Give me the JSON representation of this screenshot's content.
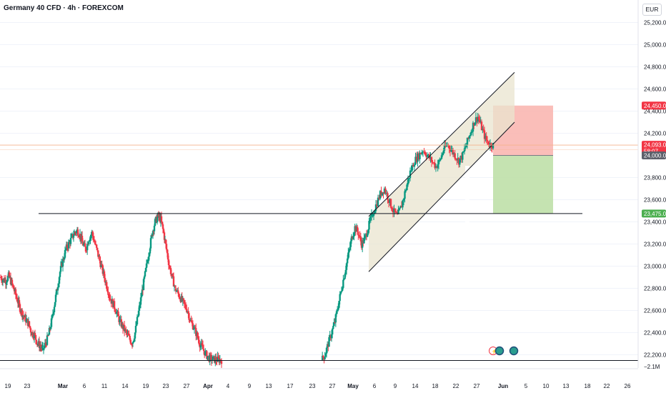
{
  "header": {
    "title": "Germany 40 CFD · 4h · FOREXCOM",
    "currency": "EUR"
  },
  "colors": {
    "up": "#089981",
    "down": "#f23645",
    "grid": "#f0f3fa",
    "channel_fill": "#e9e4cf",
    "stop_zone": "#f9b3ad",
    "target_zone": "#bfe0a8",
    "price_tag_red": "#f23645",
    "price_tag_gray": "#5d606b",
    "price_tag_green": "#4caf50"
  },
  "chart_data": {
    "type": "candlestick",
    "yaxis": {
      "ticks": [
        "25,200.0",
        "25,000.0",
        "24,800.0",
        "24,600.0",
        "24,400.0",
        "24,200.0",
        "23,800.0",
        "23,600.0",
        "23,400.0",
        "23,200.0",
        "23,000.0",
        "22,800.0",
        "22,600.0",
        "22,400.0",
        "22,200.0"
      ],
      "ylim": [
        22150,
        25250
      ]
    },
    "xaxis": {
      "ticks": [
        {
          "label": "19",
          "bold": false
        },
        {
          "label": "23",
          "bold": false
        },
        {
          "label": "Mar",
          "bold": true
        },
        {
          "label": "6",
          "bold": false
        },
        {
          "label": "11",
          "bold": false
        },
        {
          "label": "14",
          "bold": false
        },
        {
          "label": "19",
          "bold": false
        },
        {
          "label": "23",
          "bold": false
        },
        {
          "label": "27",
          "bold": false
        },
        {
          "label": "Apr",
          "bold": true
        },
        {
          "label": "4",
          "bold": false
        },
        {
          "label": "9",
          "bold": false
        },
        {
          "label": "13",
          "bold": false
        },
        {
          "label": "17",
          "bold": false
        },
        {
          "label": "23",
          "bold": false
        },
        {
          "label": "27",
          "bold": false
        },
        {
          "label": "May",
          "bold": true
        },
        {
          "label": "6",
          "bold": false
        },
        {
          "label": "9",
          "bold": false
        },
        {
          "label": "14",
          "bold": false
        },
        {
          "label": "18",
          "bold": false
        },
        {
          "label": "22",
          "bold": false
        },
        {
          "label": "27",
          "bold": false
        },
        {
          "label": "Jun",
          "bold": true
        },
        {
          "label": "5",
          "bold": false
        },
        {
          "label": "10",
          "bold": false
        },
        {
          "label": "13",
          "bold": false
        },
        {
          "label": "18",
          "bold": false
        },
        {
          "label": "22",
          "bold": false
        },
        {
          "label": "26",
          "bold": false
        }
      ]
    },
    "price_labels": [
      {
        "label": "24,450.0",
        "value": 24450,
        "color": "red"
      },
      {
        "label": "24,093.0",
        "value": 24093,
        "color": "red",
        "sublabel": "58:07"
      },
      {
        "label": "24,000.0",
        "value": 24000,
        "color": "gray"
      },
      {
        "label": "23,475.0",
        "value": 23475,
        "color": "green"
      }
    ],
    "volume_label": "−2.1M",
    "horizontal_lines": [
      23475,
      22148
    ],
    "channel": {
      "lower_start": 22950,
      "lower_end": 24300,
      "upper_start": 23450,
      "upper_end": 24750
    },
    "position": {
      "entry": 24000,
      "stop": 24450,
      "target": 23475
    },
    "series": [
      {
        "name": "segment-1",
        "values": [
          22900,
          22880,
          22870,
          22910,
          22850,
          22780,
          22700,
          22620,
          22560,
          22520,
          22480,
          22400,
          22380,
          22310,
          22280,
          22250
        ]
      },
      {
        "name": "segment-2",
        "values": [
          22250,
          22300,
          22380,
          22500,
          22650,
          22800,
          22950,
          23050,
          23150,
          23200,
          23250,
          23300,
          23320,
          23280,
          23200,
          23150
        ]
      },
      {
        "name": "segment-3",
        "values": [
          23150,
          23250,
          23300,
          23200,
          23100,
          23000,
          22900,
          22800,
          22700,
          22650,
          22580,
          22500,
          22450,
          22400,
          22350,
          22300
        ]
      },
      {
        "name": "segment-4",
        "values": [
          22300,
          22400,
          22550,
          22700,
          22850,
          23000,
          23150,
          23300,
          23400,
          23450,
          23420,
          23300,
          23150,
          23000,
          22900,
          22800
        ]
      },
      {
        "name": "segment-5",
        "values": [
          22800,
          22750,
          22700,
          22650,
          22600,
          22500,
          22450,
          22380,
          22300,
          22250,
          22200,
          22170,
          22160,
          22155,
          22155,
          22152
        ]
      },
      {
        "name": "segment-6",
        "values": [
          22150,
          22200,
          22300,
          22400,
          22500,
          22650,
          22800,
          22950,
          23100,
          23250,
          23350,
          23300,
          23200,
          23250,
          23350,
          23450
        ]
      },
      {
        "name": "segment-7",
        "values": [
          23450,
          23550,
          23650,
          23700,
          23600,
          23500,
          23450,
          23550,
          23700,
          23850,
          23950,
          24000,
          24050,
          24000,
          23950,
          23900
        ]
      },
      {
        "name": "segment-8",
        "values": [
          23900,
          23950,
          24050,
          24100,
          24050,
          24000,
          23950,
          24000,
          24100,
          24200,
          24300,
          24350,
          24250,
          24150,
          24100,
          24093
        ]
      }
    ]
  }
}
